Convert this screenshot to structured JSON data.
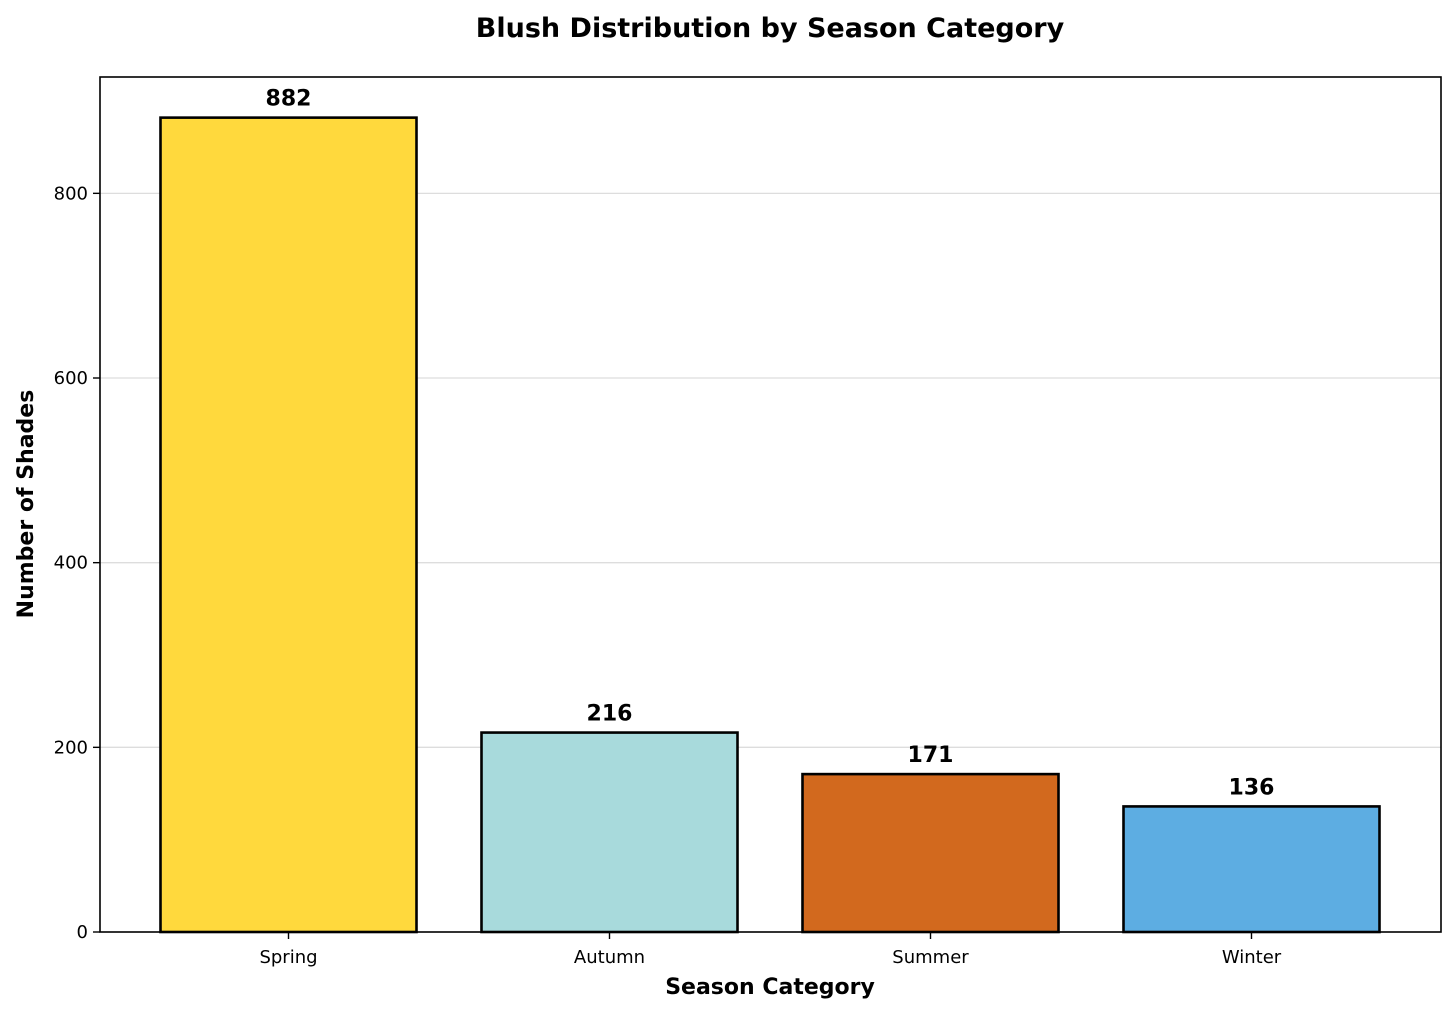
{
  "chart_data": {
    "type": "bar",
    "title": "Blush Distribution by Season Category",
    "xlabel": "Season Category",
    "ylabel": "Number of Shades",
    "categories": [
      "Spring",
      "Autumn",
      "Summer",
      "Winter"
    ],
    "values": [
      882,
      216,
      171,
      136
    ],
    "data_labels": [
      "882",
      "216",
      "171",
      "136"
    ],
    "colors": [
      "#FFD93D",
      "#A8DADC",
      "#D2691E",
      "#5DADE2"
    ],
    "ylim": [
      0,
      926
    ],
    "yticks": [
      0,
      200,
      400,
      600,
      800
    ],
    "grid": "y-axis only",
    "legend": "none"
  }
}
